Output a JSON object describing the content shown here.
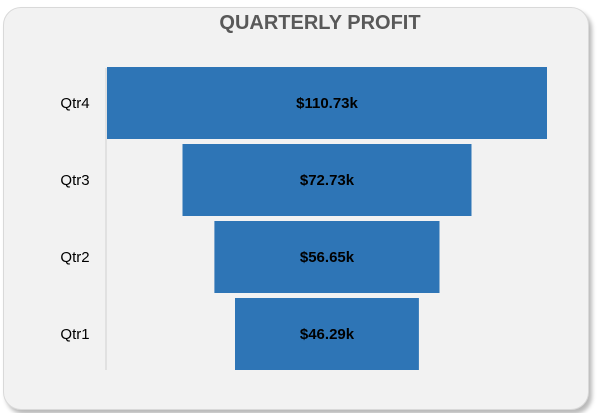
{
  "chart_data": {
    "type": "bar",
    "subtype": "funnel",
    "orientation": "horizontal",
    "title": "QUARTERLY PROFIT",
    "categories": [
      "Qtr4",
      "Qtr3",
      "Qtr2",
      "Qtr1"
    ],
    "values": [
      110.73,
      72.73,
      56.65,
      46.29
    ],
    "value_labels": [
      "$110.73k",
      "$72.73k",
      "$56.65k",
      "$46.29k"
    ],
    "units": "thousand USD",
    "bar_color": "#2e75b6",
    "grid": false,
    "legend": "none"
  }
}
